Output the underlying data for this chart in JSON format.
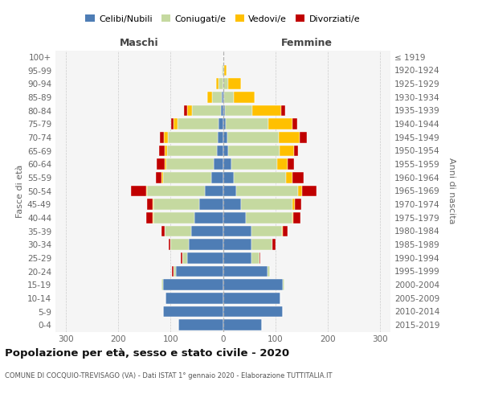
{
  "age_groups": [
    "0-4",
    "5-9",
    "10-14",
    "15-19",
    "20-24",
    "25-29",
    "30-34",
    "35-39",
    "40-44",
    "45-49",
    "50-54",
    "55-59",
    "60-64",
    "65-69",
    "70-74",
    "75-79",
    "80-84",
    "85-89",
    "90-94",
    "95-99",
    "100+"
  ],
  "birth_years": [
    "2015-2019",
    "2010-2014",
    "2005-2009",
    "2000-2004",
    "1995-1999",
    "1990-1994",
    "1985-1989",
    "1980-1984",
    "1975-1979",
    "1970-1974",
    "1965-1969",
    "1960-1964",
    "1955-1959",
    "1950-1954",
    "1945-1949",
    "1940-1944",
    "1935-1939",
    "1930-1934",
    "1925-1929",
    "1920-1924",
    "≤ 1919"
  ],
  "maschi_celibi": [
    85,
    115,
    110,
    115,
    90,
    68,
    65,
    60,
    55,
    45,
    35,
    22,
    18,
    12,
    10,
    8,
    4,
    2,
    0,
    0,
    0
  ],
  "maschi_coniugati": [
    0,
    0,
    0,
    2,
    5,
    10,
    35,
    52,
    78,
    88,
    110,
    92,
    90,
    95,
    95,
    78,
    55,
    18,
    8,
    2,
    0
  ],
  "maschi_vedovi": [
    0,
    0,
    0,
    0,
    0,
    0,
    0,
    0,
    2,
    2,
    2,
    4,
    4,
    5,
    8,
    8,
    10,
    10,
    5,
    0,
    0
  ],
  "maschi_divorziati": [
    0,
    0,
    0,
    0,
    2,
    2,
    4,
    5,
    12,
    10,
    28,
    10,
    14,
    10,
    8,
    5,
    5,
    0,
    0,
    0,
    0
  ],
  "femmine_nubili": [
    75,
    115,
    110,
    115,
    85,
    55,
    55,
    55,
    44,
    35,
    25,
    20,
    16,
    10,
    8,
    5,
    4,
    2,
    0,
    0,
    0
  ],
  "femmine_coniugate": [
    0,
    0,
    0,
    2,
    5,
    15,
    40,
    58,
    88,
    98,
    118,
    100,
    88,
    98,
    98,
    82,
    52,
    18,
    10,
    2,
    0
  ],
  "femmine_vedove": [
    0,
    0,
    0,
    0,
    0,
    0,
    0,
    2,
    2,
    5,
    8,
    12,
    20,
    28,
    40,
    45,
    55,
    40,
    25,
    5,
    0
  ],
  "femmine_divorziate": [
    0,
    0,
    0,
    0,
    0,
    2,
    5,
    8,
    14,
    12,
    28,
    22,
    12,
    8,
    14,
    10,
    8,
    0,
    0,
    0,
    0
  ],
  "color_celibi": "#4e7db5",
  "color_coniugati": "#c5d9a0",
  "color_vedovi": "#ffc000",
  "color_divorziati": "#c00000",
  "xlim": 320,
  "xtick_vals": [
    -300,
    -200,
    -100,
    0,
    100,
    200,
    300
  ],
  "title": "Popolazione per età, sesso e stato civile - 2020",
  "subtitle": "COMUNE DI COCQUIO-TREVISAGO (VA) - Dati ISTAT 1° gennaio 2020 - Elaborazione TUTTITALIA.IT",
  "ylabel_left": "Fasce di età",
  "ylabel_right": "Anni di nascita",
  "label_maschi": "Maschi",
  "label_femmine": "Femmine",
  "legend_labels": [
    "Celibi/Nubili",
    "Coniugati/e",
    "Vedovi/e",
    "Divorziati/e"
  ],
  "bg_color": "#f5f5f5"
}
